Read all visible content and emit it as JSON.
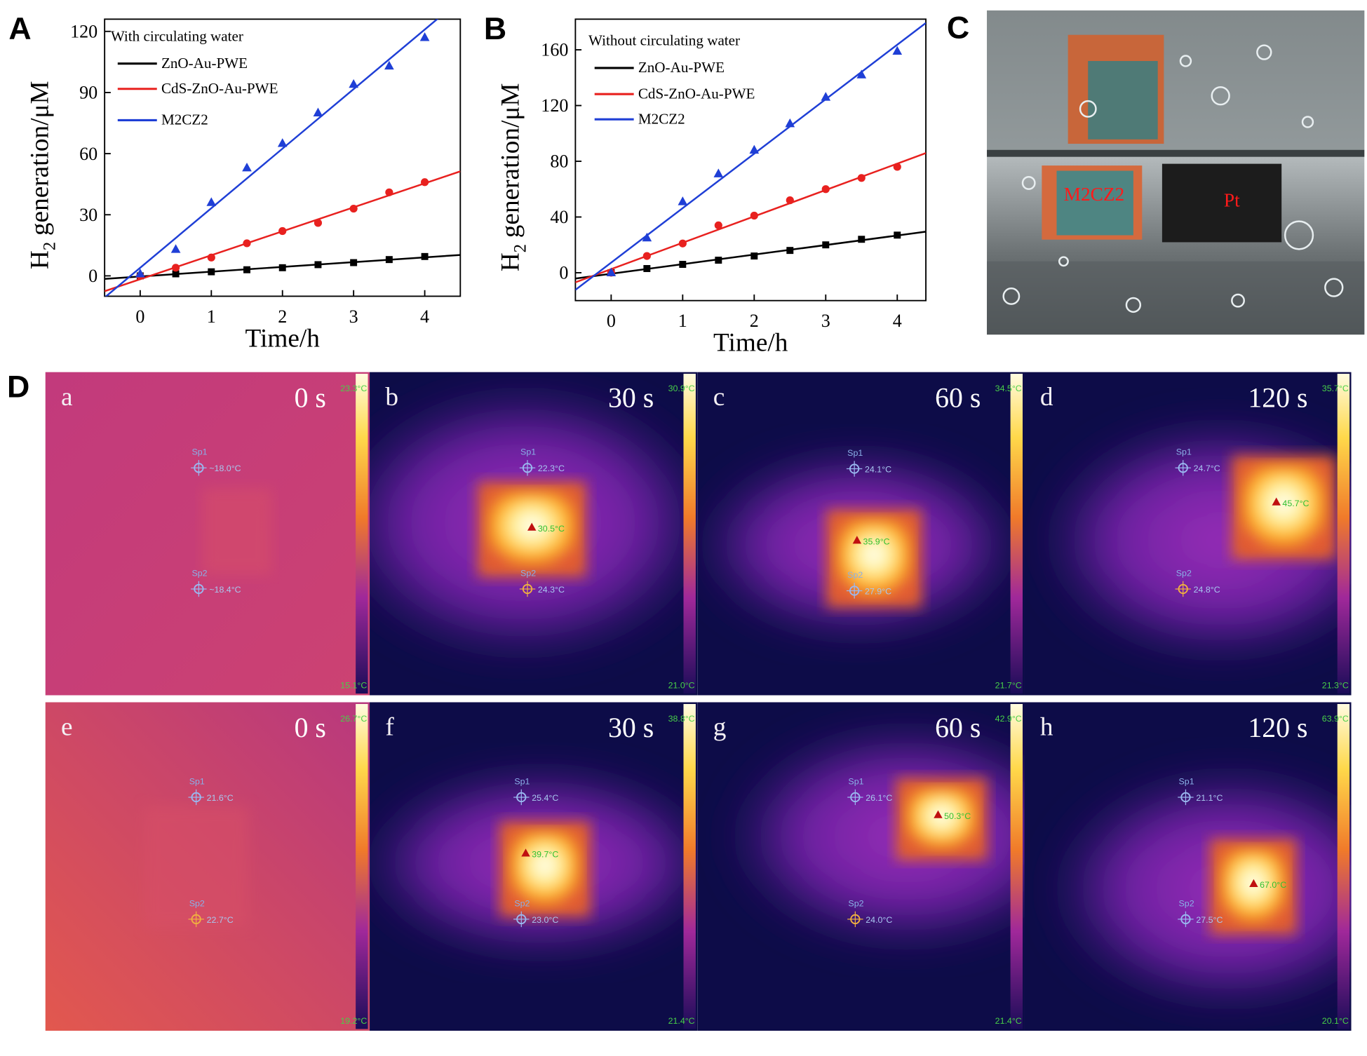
{
  "chart_data": [
    {
      "type": "scatter",
      "panel_label": "A",
      "legend_title": "With circulating water",
      "fit": "linear",
      "x": [
        0,
        0.5,
        1,
        1.5,
        2,
        2.5,
        3,
        3.5,
        4
      ],
      "series": [
        {
          "name": "ZnO-Au-PWE",
          "color": "#000000",
          "marker": "square",
          "values": [
            0,
            1,
            2,
            3,
            4,
            5.5,
            6.5,
            8,
            9.5
          ]
        },
        {
          "name": "CdS-ZnO-Au-PWE",
          "color": "#e8211f",
          "marker": "circle",
          "values": [
            0,
            4,
            9,
            16,
            22,
            26,
            33,
            41,
            46
          ]
        },
        {
          "name": "M2CZ2",
          "color": "#1f3fd6",
          "marker": "triangle",
          "values": [
            1,
            13,
            36,
            53,
            65,
            80,
            94,
            103,
            117
          ]
        }
      ],
      "xlim": [
        -0.5,
        4.5
      ],
      "ylim": [
        -10,
        126
      ],
      "xticks": [
        0,
        1,
        2,
        3,
        4
      ],
      "yticks": [
        0,
        30,
        60,
        90,
        120
      ],
      "xlabel": "Time/h",
      "ylabel": {
        "main": "H",
        "sub": "2",
        "rest": "generation/μM"
      }
    },
    {
      "type": "scatter",
      "panel_label": "B",
      "legend_title": "Without circulating water",
      "fit": "linear",
      "x": [
        0,
        0.5,
        1,
        1.5,
        2,
        2.5,
        3,
        3.5,
        4
      ],
      "series": [
        {
          "name": "ZnO-Au-PWE",
          "color": "#000000",
          "marker": "square",
          "values": [
            0,
            3,
            6,
            9,
            12,
            16,
            20,
            24,
            27
          ]
        },
        {
          "name": "CdS-ZnO-Au-PWE",
          "color": "#e8211f",
          "marker": "circle",
          "values": [
            0,
            12,
            21,
            34,
            41,
            52,
            60,
            68,
            76
          ]
        },
        {
          "name": "M2CZ2",
          "color": "#1f3fd6",
          "marker": "triangle",
          "values": [
            0,
            25,
            51,
            71,
            88,
            107,
            126,
            142,
            159
          ]
        }
      ],
      "xlim": [
        -0.5,
        4.4
      ],
      "ylim": [
        -20,
        182
      ],
      "xticks": [
        0,
        1,
        2,
        3,
        4
      ],
      "yticks": [
        0,
        40,
        80,
        120,
        160
      ],
      "xlabel": "Time/h",
      "ylabel": {
        "main": "H",
        "sub": "2",
        "rest": "generation/μM"
      }
    }
  ],
  "photo": {
    "panel_label": "C",
    "labels": [
      "M2CZ2",
      "Pt"
    ]
  },
  "thermal": {
    "panel_label": "D",
    "tiles": [
      {
        "letter": "a",
        "time": "0 s",
        "scale_max": "23.3°C",
        "scale_min": "15.1°C",
        "sp1": {
          "name": "Sp1",
          "temp": "~18.0°C"
        },
        "sp2": {
          "name": "Sp2",
          "temp": "~18.4°C"
        }
      },
      {
        "letter": "b",
        "time": "30 s",
        "scale_max": "30.9°C",
        "scale_min": "21.0°C",
        "sp1": {
          "name": "Sp1",
          "temp": "22.3°C"
        },
        "sp2": {
          "name": "Sp2",
          "temp": "24.3°C"
        },
        "hotspot": "30.5°C"
      },
      {
        "letter": "c",
        "time": "60 s",
        "scale_max": "34.5°C",
        "scale_min": "21.7°C",
        "sp1": {
          "name": "Sp1",
          "temp": "24.1°C"
        },
        "sp2": {
          "name": "Sp2",
          "temp": "27.9°C"
        },
        "hotspot": "35.9°C"
      },
      {
        "letter": "d",
        "time": "120 s",
        "scale_max": "35.7°C",
        "scale_min": "21.3°C",
        "sp1": {
          "name": "Sp1",
          "temp": "24.7°C"
        },
        "sp2": {
          "name": "Sp2",
          "temp": "24.8°C"
        },
        "hotspot": "45.7°C"
      },
      {
        "letter": "e",
        "time": "0 s",
        "scale_max": "26.7°C",
        "scale_min": "19.2°C",
        "sp1": {
          "name": "Sp1",
          "temp": "21.6°C"
        },
        "sp2": {
          "name": "Sp2",
          "temp": "22.7°C"
        }
      },
      {
        "letter": "f",
        "time": "30 s",
        "scale_max": "38.8°C",
        "scale_min": "21.4°C",
        "sp1": {
          "name": "Sp1",
          "temp": "25.4°C"
        },
        "sp2": {
          "name": "Sp2",
          "temp": "23.0°C"
        },
        "hotspot": "39.7°C"
      },
      {
        "letter": "g",
        "time": "60 s",
        "scale_max": "42.9°C",
        "scale_min": "21.4°C",
        "sp1": {
          "name": "Sp1",
          "temp": "26.1°C"
        },
        "sp2": {
          "name": "Sp2",
          "temp": "24.0°C"
        },
        "hotspot": "50.3°C"
      },
      {
        "letter": "h",
        "time": "120 s",
        "scale_max": "63.9°C",
        "scale_min": "20.1°C",
        "sp1": {
          "name": "Sp1",
          "temp": "21.1°C"
        },
        "sp2": {
          "name": "Sp2",
          "temp": "27.5°C"
        },
        "hotspot": "67.0°C"
      }
    ]
  }
}
